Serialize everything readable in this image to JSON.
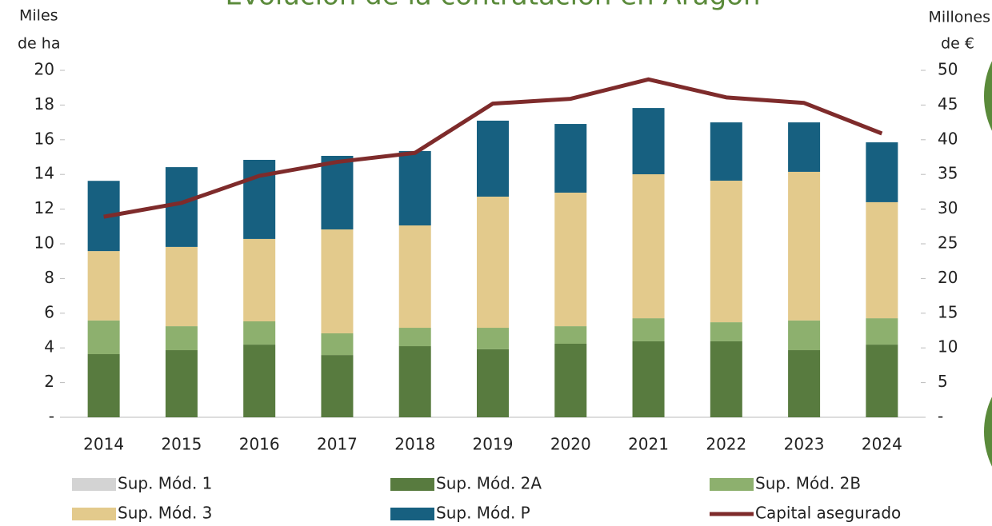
{
  "chart_data": {
    "type": "bar",
    "stacked": true,
    "title": "Evolución de la contratación en Aragón",
    "y_label": [
      "Miles",
      "de ha"
    ],
    "y2_label": [
      "Millones",
      "de €"
    ],
    "categories": [
      "2014",
      "2015",
      "2016",
      "2017",
      "2018",
      "2019",
      "2020",
      "2021",
      "2022",
      "2023",
      "2024"
    ],
    "series": [
      {
        "name": "Sup. Mód. 1",
        "color": "#d3d3d3",
        "values": [
          0,
          0,
          0,
          0,
          0,
          0,
          0,
          0,
          0,
          0,
          0
        ]
      },
      {
        "name": "Sup. Mód. 2A",
        "color": "#587b3f",
        "values": [
          3.64,
          3.87,
          4.19,
          3.59,
          4.1,
          3.92,
          4.24,
          4.38,
          4.38,
          3.87,
          4.19
        ]
      },
      {
        "name": "Sup. Mód. 2B",
        "color": "#8db06e",
        "values": [
          1.94,
          1.38,
          1.34,
          1.25,
          1.06,
          1.24,
          1.01,
          1.33,
          1.1,
          1.71,
          1.52
        ]
      },
      {
        "name": "Sup. Mód. 3",
        "color": "#e3ca8c",
        "values": [
          4.0,
          4.57,
          4.75,
          5.99,
          5.9,
          7.56,
          7.7,
          8.3,
          8.16,
          8.57,
          6.69
        ]
      },
      {
        "name": "Sup. Mód. P",
        "color": "#176080",
        "values": [
          4.05,
          4.6,
          4.56,
          4.24,
          4.29,
          4.38,
          3.96,
          3.82,
          3.36,
          2.85,
          3.45
        ]
      },
      {
        "name": "Capital asegurado",
        "color": "#7e2b2b",
        "type": "line",
        "axis": "y2",
        "values": [
          28.9,
          30.9,
          34.8,
          36.8,
          38.1,
          45.2,
          45.9,
          48.7,
          46.1,
          45.3,
          40.9
        ]
      }
    ],
    "ylim": [
      0,
      20
    ],
    "yticks": [
      {
        "value": 0,
        "label": "-"
      },
      2,
      4,
      6,
      8,
      10,
      12,
      14,
      16,
      18,
      20
    ],
    "y2lim": [
      0,
      50
    ],
    "y2ticks": [
      {
        "value": 0,
        "label": "-"
      },
      5,
      10,
      15,
      20,
      25,
      30,
      35,
      40,
      45,
      50
    ],
    "legend": "bottom"
  }
}
